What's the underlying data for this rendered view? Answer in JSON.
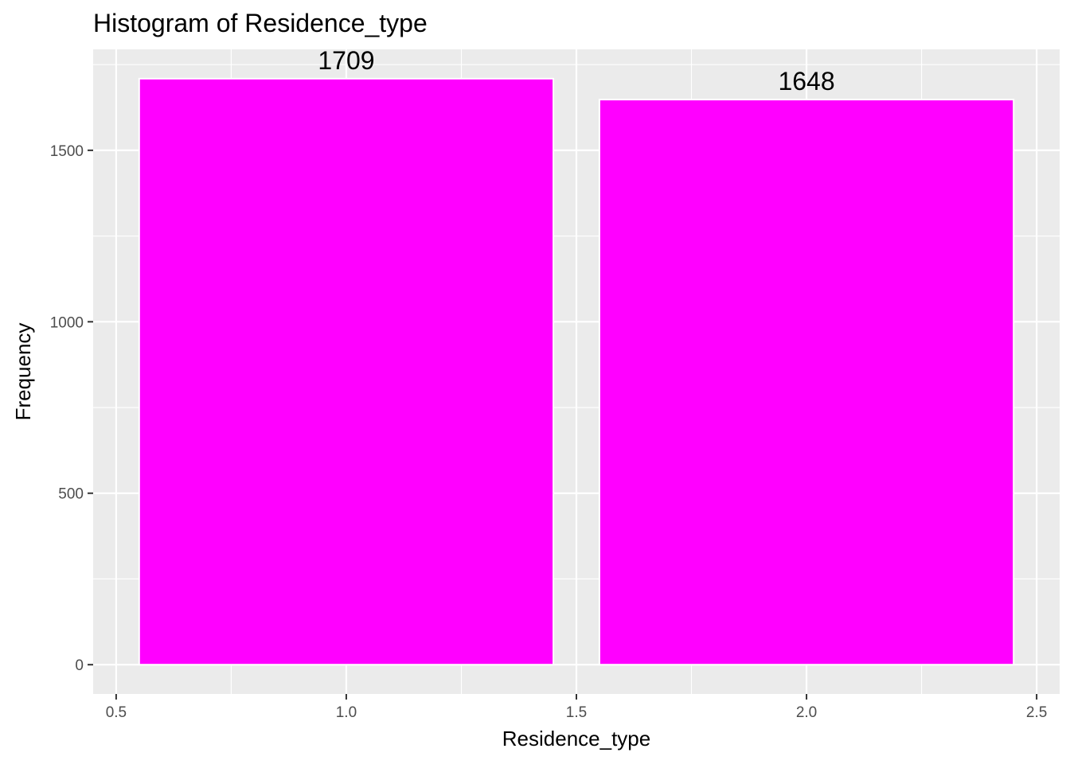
{
  "chart_data": {
    "type": "bar",
    "title": "Histogram of Residence_type",
    "xlabel": "Residence_type",
    "ylabel": "Frequency",
    "categories": [
      1,
      2
    ],
    "values": [
      1709,
      1648
    ],
    "data_labels": [
      "1709",
      "1648"
    ],
    "bar_width": 0.9,
    "xlim": [
      0.45,
      2.55
    ],
    "ylim": [
      -85.45,
      1794.45
    ],
    "x_ticks": [
      0.5,
      1.0,
      1.5,
      2.0,
      2.5
    ],
    "x_tick_labels": [
      "0.5",
      "1.0",
      "1.5",
      "2.0",
      "2.5"
    ],
    "y_ticks": [
      0,
      500,
      1000,
      1500
    ],
    "y_tick_labels": [
      "0",
      "500",
      "1000",
      "1500"
    ],
    "grid": true,
    "legend": "none",
    "colors": {
      "bar_fill": "#ff00ff",
      "bar_outline": "#ffffff",
      "panel_background": "#ebebeb",
      "grid": "#ffffff",
      "tick_label": "#4d4d4d",
      "text": "#000000"
    }
  }
}
